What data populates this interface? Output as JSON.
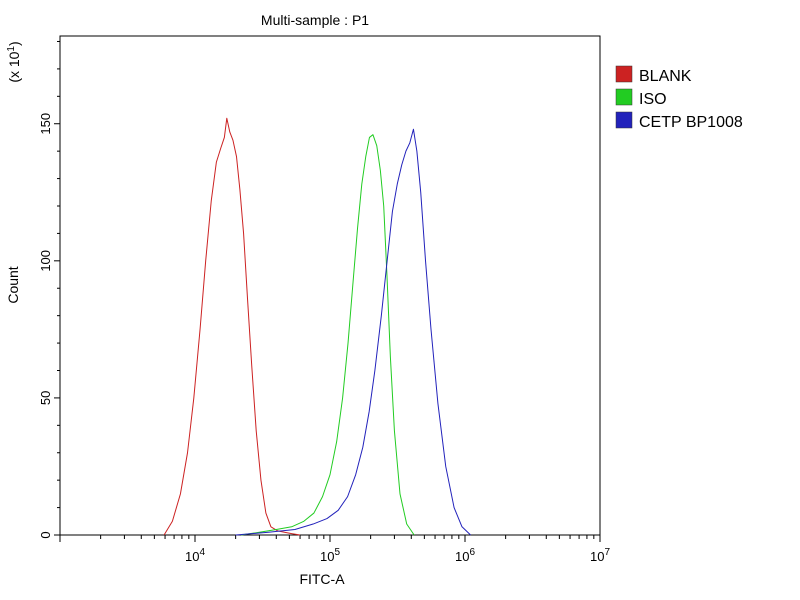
{
  "chart_data": {
    "type": "line",
    "title": "Multi-sample : P1",
    "xlabel": "FITC-A",
    "ylabel": "Count",
    "y_multiplier": "(x 10",
    "y_multiplier_exp": "1",
    "y_multiplier_close": ")",
    "x_scale": "log",
    "xlim": [
      1000,
      10000000
    ],
    "ylim": [
      0,
      182
    ],
    "x_ticks": [
      {
        "value": 10000,
        "base": "10",
        "exp": "4"
      },
      {
        "value": 100000,
        "base": "10",
        "exp": "5"
      },
      {
        "value": 1000000,
        "base": "10",
        "exp": "6"
      },
      {
        "value": 10000000,
        "base": "10",
        "exp": "7"
      }
    ],
    "y_ticks": [
      {
        "value": 0,
        "label": "0"
      },
      {
        "value": 50,
        "label": "50"
      },
      {
        "value": 100,
        "label": "100"
      },
      {
        "value": 150,
        "label": "150"
      }
    ],
    "grid": false,
    "legend_position": "top-right, outside plot",
    "series": [
      {
        "name": "BLANK",
        "color": "#cc2222",
        "x": [
          5900,
          6800,
          7800,
          8800,
          9800,
          10900,
          12000,
          13200,
          14400,
          15500,
          16500,
          17200,
          18100,
          19100,
          20300,
          21500,
          22900,
          24500,
          26300,
          28400,
          30800,
          33500,
          36500,
          41000,
          46000,
          52000,
          60000
        ],
        "y": [
          0,
          5,
          15,
          30,
          50,
          75,
          100,
          122,
          136,
          141,
          145,
          152,
          147,
          144,
          138,
          126,
          110,
          86,
          62,
          38,
          20,
          8,
          3,
          1.5,
          1,
          0.5,
          0
        ]
      },
      {
        "name": "ISO",
        "color": "#22cc22",
        "x": [
          22000,
          30000,
          40000,
          52000,
          64000,
          76000,
          88000,
          100000,
          112000,
          124000,
          136000,
          148000,
          160000,
          172000,
          184000,
          196000,
          208000,
          222000,
          236000,
          250000,
          264000,
          280000,
          300000,
          330000,
          370000,
          420000
        ],
        "y": [
          0,
          1,
          2,
          3,
          5,
          8,
          14,
          22,
          34,
          50,
          70,
          92,
          112,
          128,
          138,
          145,
          146,
          142,
          133,
          120,
          95,
          65,
          38,
          15,
          4,
          0
        ]
      },
      {
        "name": "CETP BP1008",
        "color": "#2222bb",
        "x": [
          20000,
          35000,
          55000,
          75000,
          95000,
          115000,
          135000,
          155000,
          175000,
          195000,
          215000,
          240000,
          265000,
          290000,
          315000,
          340000,
          365000,
          390000,
          415000,
          440000,
          470000,
          510000,
          560000,
          630000,
          720000,
          830000,
          950000,
          1100000
        ],
        "y": [
          0,
          1,
          2,
          4,
          6,
          9,
          14,
          22,
          32,
          45,
          60,
          80,
          100,
          118,
          128,
          135,
          140,
          143,
          148,
          140,
          125,
          100,
          75,
          48,
          25,
          10,
          3,
          0
        ]
      }
    ]
  }
}
